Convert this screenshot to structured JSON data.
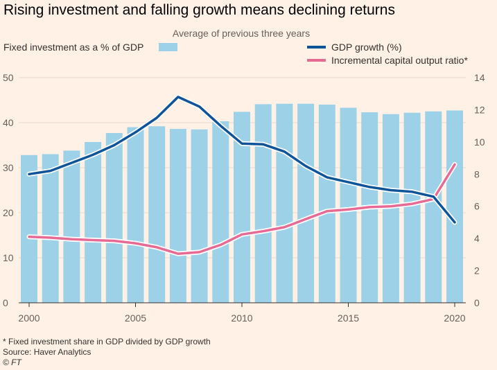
{
  "title": "Rising investment and falling growth means declining returns",
  "colors": {
    "background": "#fff1e5",
    "bar": "#9dd1e8",
    "gdp_line": "#0f5499",
    "icor_line": "#e66a94",
    "grid": "#e6d9ce",
    "line_outline": "#ffffff"
  },
  "footer": {
    "note": "* Fixed investment share in GDP divided by GDP growth",
    "source": "Source: Haver Analytics",
    "credit": "© FT"
  },
  "chart_data": {
    "type": "bar",
    "title": "Rising investment and falling growth means declining returns",
    "subtitle": "Average of previous three years",
    "categories": [
      2000,
      2001,
      2002,
      2003,
      2004,
      2005,
      2006,
      2007,
      2008,
      2009,
      2010,
      2011,
      2012,
      2013,
      2014,
      2015,
      2016,
      2017,
      2018,
      2019,
      2020
    ],
    "x_ticks": [
      "2000",
      "2005",
      "2010",
      "2015",
      "2020"
    ],
    "left_axis": {
      "ticks": [
        "0",
        "10",
        "20",
        "30",
        "40",
        "50"
      ],
      "ylim": [
        0,
        50
      ]
    },
    "right_axis": {
      "ticks": [
        "0",
        "2",
        "4",
        "6",
        "8",
        "10",
        "12",
        "14"
      ],
      "ylim": [
        0,
        14
      ]
    },
    "grid": true,
    "legend_position": "top",
    "series": [
      {
        "name": "Fixed investment as a % of GDP",
        "type": "bar",
        "axis": "left",
        "values": [
          32.8,
          33.0,
          33.8,
          35.7,
          37.7,
          39.0,
          39.2,
          38.6,
          38.5,
          40.3,
          42.4,
          44.1,
          44.2,
          44.2,
          44.0,
          43.3,
          42.3,
          41.9,
          42.2,
          42.5,
          42.7
        ]
      },
      {
        "name": "GDP growth (%)",
        "type": "line",
        "axis": "right",
        "values": [
          8.0,
          8.2,
          8.7,
          9.2,
          9.8,
          10.6,
          11.5,
          12.8,
          12.2,
          11.0,
          9.9,
          9.85,
          9.4,
          8.5,
          7.8,
          7.5,
          7.2,
          7.0,
          6.9,
          6.6,
          5.0
        ]
      },
      {
        "name": "Incremental capital output ratio*",
        "type": "line",
        "axis": "right",
        "values": [
          4.1,
          4.05,
          3.95,
          3.9,
          3.85,
          3.7,
          3.45,
          3.05,
          3.15,
          3.6,
          4.25,
          4.45,
          4.7,
          5.2,
          5.7,
          5.8,
          5.95,
          6.0,
          6.15,
          6.45,
          8.6
        ]
      }
    ]
  }
}
